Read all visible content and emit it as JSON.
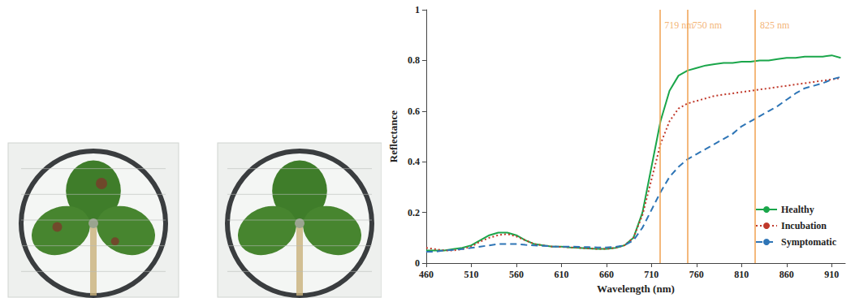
{
  "chart_data": {
    "type": "line",
    "x_label": "Wavelength (nm)",
    "y_label": "Reflectance",
    "xlim": [
      460,
      925
    ],
    "xticks": [
      460,
      510,
      560,
      610,
      660,
      710,
      760,
      810,
      860,
      910
    ],
    "ylim": [
      0,
      1
    ],
    "yticks": [
      0,
      0.2,
      0.4,
      0.6,
      0.8,
      1
    ],
    "grid": false,
    "legend": "bottom-right",
    "annotations": [
      {
        "x": 719,
        "label": "719 nm"
      },
      {
        "x": 750,
        "label": "750 nm"
      },
      {
        "x": 825,
        "label": "825 nm"
      }
    ],
    "x": [
      460,
      470,
      480,
      490,
      500,
      510,
      520,
      530,
      540,
      550,
      560,
      570,
      580,
      590,
      600,
      610,
      620,
      630,
      640,
      650,
      660,
      670,
      680,
      690,
      700,
      710,
      720,
      730,
      740,
      750,
      760,
      770,
      780,
      790,
      800,
      810,
      820,
      830,
      840,
      850,
      860,
      870,
      880,
      890,
      900,
      910,
      920
    ],
    "series": [
      {
        "name": "Healthy",
        "color": "#1aa64a",
        "line_style": "solid",
        "values": [
          0.05,
          0.05,
          0.05,
          0.055,
          0.06,
          0.07,
          0.09,
          0.11,
          0.12,
          0.12,
          0.11,
          0.09,
          0.075,
          0.07,
          0.065,
          0.065,
          0.062,
          0.06,
          0.058,
          0.056,
          0.056,
          0.06,
          0.07,
          0.1,
          0.2,
          0.38,
          0.56,
          0.68,
          0.74,
          0.76,
          0.77,
          0.78,
          0.785,
          0.79,
          0.79,
          0.795,
          0.795,
          0.8,
          0.8,
          0.805,
          0.81,
          0.81,
          0.815,
          0.815,
          0.815,
          0.82,
          0.81
        ]
      },
      {
        "name": "Incubation",
        "color": "#c0392b",
        "line_style": "dotted",
        "values": [
          0.06,
          0.055,
          0.05,
          0.05,
          0.055,
          0.065,
          0.085,
          0.1,
          0.11,
          0.115,
          0.105,
          0.09,
          0.075,
          0.07,
          0.065,
          0.064,
          0.062,
          0.06,
          0.058,
          0.056,
          0.056,
          0.06,
          0.07,
          0.1,
          0.19,
          0.33,
          0.47,
          0.56,
          0.61,
          0.63,
          0.64,
          0.65,
          0.66,
          0.665,
          0.67,
          0.675,
          0.68,
          0.685,
          0.69,
          0.695,
          0.7,
          0.705,
          0.71,
          0.715,
          0.72,
          0.725,
          0.73
        ]
      },
      {
        "name": "Symptomatic",
        "color": "#2e75b6",
        "line_style": "dashed",
        "values": [
          0.045,
          0.045,
          0.05,
          0.052,
          0.055,
          0.06,
          0.065,
          0.07,
          0.075,
          0.075,
          0.075,
          0.072,
          0.07,
          0.068,
          0.066,
          0.065,
          0.065,
          0.064,
          0.063,
          0.062,
          0.062,
          0.064,
          0.07,
          0.09,
          0.14,
          0.21,
          0.28,
          0.34,
          0.38,
          0.41,
          0.43,
          0.45,
          0.47,
          0.49,
          0.51,
          0.54,
          0.56,
          0.58,
          0.6,
          0.62,
          0.645,
          0.67,
          0.69,
          0.7,
          0.71,
          0.725,
          0.735
        ]
      }
    ]
  }
}
